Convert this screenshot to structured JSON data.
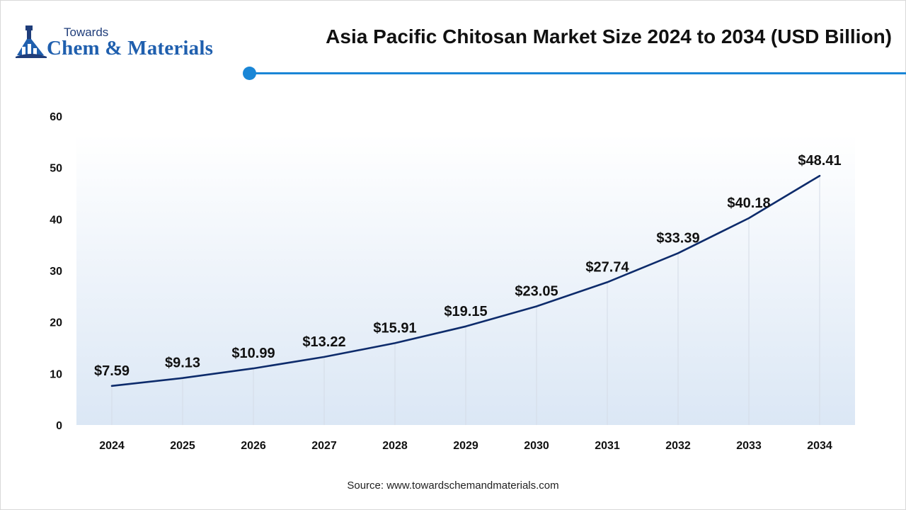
{
  "header": {
    "logo_small": "Towards",
    "logo_big": "Chem & Materials",
    "title": "Asia Pacific Chitosan Market Size 2024 to 2034 (USD Billion)"
  },
  "footer": {
    "source": "Source: www.towardschemandmaterials.com"
  },
  "colors": {
    "line": "#0d2b6b",
    "accent": "#1a86d6",
    "area_top": "#ffffff",
    "area_bottom": "#dbe7f5"
  },
  "chart_data": {
    "type": "line",
    "title": "Asia Pacific Chitosan Market Size 2024 to 2034 (USD Billion)",
    "xlabel": "",
    "ylabel": "",
    "categories": [
      "2024",
      "2025",
      "2026",
      "2027",
      "2028",
      "2029",
      "2030",
      "2031",
      "2032",
      "2033",
      "2034"
    ],
    "series": [
      {
        "values": [
          7.59,
          9.13,
          10.99,
          13.22,
          15.91,
          19.15,
          23.05,
          27.74,
          33.39,
          40.18,
          48.41
        ],
        "labels": [
          "$7.59",
          "$9.13",
          "$10.99",
          "$13.22",
          "$15.91",
          "$19.15",
          "$23.05",
          "$27.74",
          "$33.39",
          "$40.18",
          "$48.41"
        ]
      }
    ],
    "ylim": [
      0,
      60
    ],
    "yticks": [
      "0",
      "10",
      "20",
      "30",
      "40",
      "50",
      "60"
    ],
    "grid": "vertical",
    "legend": "none"
  }
}
